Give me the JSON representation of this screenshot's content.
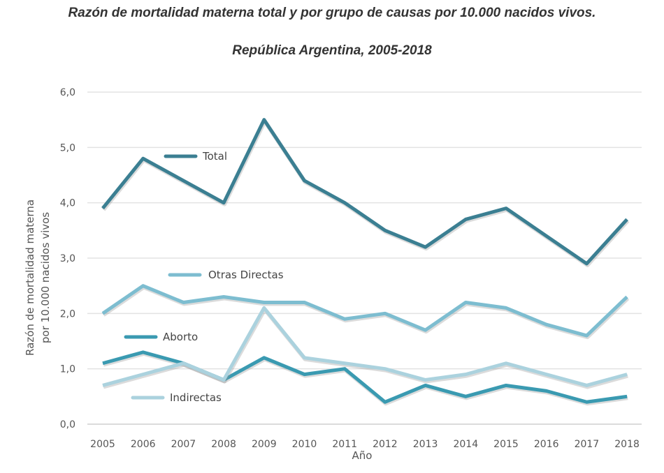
{
  "chart_data": {
    "type": "line",
    "title": "Razón de mortalidad materna total y por grupo de causas por 10.000 nacidos vivos.",
    "subtitle": "República Argentina, 2005-2018",
    "xlabel": "Año",
    "ylabel_line1": "Razón de mortalidad materna",
    "ylabel_line2": "por 10.000 nacidos vivos",
    "x": [
      "2005",
      "2006",
      "2007",
      "2008",
      "2009",
      "2010",
      "2011",
      "2012",
      "2013",
      "2014",
      "2015",
      "2016",
      "2017",
      "2018"
    ],
    "ylim": [
      0,
      6
    ],
    "yticks": [
      "0,0",
      "1,0",
      "2,0",
      "3,0",
      "4,0",
      "5,0",
      "6,0"
    ],
    "grid": true,
    "legend": "inline",
    "series": [
      {
        "name": "Total",
        "color": "#3b7f92",
        "values": [
          3.9,
          4.8,
          4.4,
          4.0,
          5.5,
          4.4,
          4.0,
          3.5,
          3.2,
          3.7,
          3.9,
          3.4,
          2.9,
          3.7
        ]
      },
      {
        "name": "Otras Directas",
        "color": "#7dbdd0",
        "values": [
          2.0,
          2.5,
          2.2,
          2.3,
          2.2,
          2.2,
          1.9,
          2.0,
          1.7,
          2.2,
          2.1,
          1.8,
          1.6,
          2.3
        ]
      },
      {
        "name": "Aborto",
        "color": "#3a9ab1",
        "values": [
          1.1,
          1.3,
          1.1,
          0.8,
          1.2,
          0.9,
          1.0,
          0.4,
          0.7,
          0.5,
          0.7,
          0.6,
          0.4,
          0.5
        ]
      },
      {
        "name": "Indirectas",
        "color": "#abd2de",
        "values": [
          0.7,
          0.9,
          1.1,
          0.8,
          2.1,
          1.2,
          1.1,
          1.0,
          0.8,
          0.9,
          1.1,
          0.9,
          0.7,
          0.9
        ]
      }
    ]
  }
}
